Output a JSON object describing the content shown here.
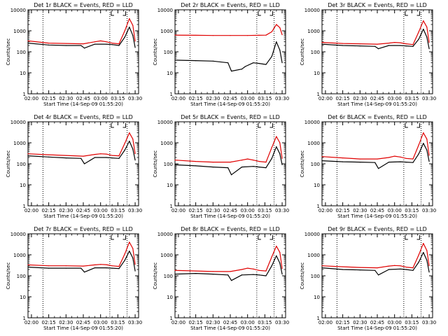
{
  "chart_data": [
    {
      "type": "line",
      "title": "Det 1r BLACK = Events, RED = LLD",
      "ylabel": "Counts/sec",
      "xlabel": "Start Time (14-Sep-09 01:55:20)",
      "yscale": "log",
      "ylim": [
        1,
        10000
      ],
      "x_ticks": [
        "02:00",
        "02:15",
        "02:30",
        "02:45",
        "03:00",
        "03:15",
        "03:30"
      ],
      "dotted_lines_at": [
        "02:10",
        "03:08",
        "03:23"
      ],
      "series": [
        {
          "color": "#000000",
          "x": [
            "01:57",
            "02:15",
            "02:30",
            "02:43",
            "02:46",
            "02:55",
            "03:05",
            "03:10",
            "03:16",
            "03:21",
            "03:25",
            "03:28",
            "03:30"
          ],
          "values": [
            260,
            210,
            200,
            200,
            150,
            230,
            230,
            220,
            200,
            500,
            1500,
            600,
            160
          ]
        },
        {
          "color": "#e00000",
          "x": [
            "01:57",
            "02:15",
            "02:30",
            "02:45",
            "02:55",
            "03:00",
            "03:05",
            "03:10",
            "03:16",
            "03:21",
            "03:25",
            "03:28",
            "03:30"
          ],
          "values": [
            330,
            260,
            250,
            240,
            300,
            330,
            300,
            260,
            240,
            1000,
            3800,
            1800,
            320
          ]
        }
      ]
    },
    {
      "type": "line",
      "title": "Det 2r BLACK = Events, RED = LLD",
      "ylabel": "Counts/sec",
      "xlabel": "Start Time (14-Sep-09 01:55:20)",
      "yscale": "log",
      "ylim": [
        1,
        10000
      ],
      "x_ticks": [
        "02:00",
        "02:15",
        "02:30",
        "02:45",
        "03:00",
        "03:15",
        "03:30"
      ],
      "dotted_lines_at": [
        "02:10",
        "03:08",
        "03:23"
      ],
      "series": [
        {
          "color": "#000000",
          "x": [
            "01:57",
            "02:15",
            "02:30",
            "02:43",
            "02:46",
            "02:55",
            "02:58",
            "03:05",
            "03:10",
            "03:16",
            "03:21",
            "03:25",
            "03:28",
            "03:30"
          ],
          "values": [
            40,
            38,
            36,
            30,
            12,
            15,
            20,
            30,
            28,
            25,
            60,
            300,
            120,
            30
          ]
        },
        {
          "color": "#e00000",
          "x": [
            "01:57",
            "02:15",
            "02:30",
            "02:45",
            "03:00",
            "03:10",
            "03:16",
            "03:21",
            "03:25",
            "03:28",
            "03:30"
          ],
          "values": [
            620,
            610,
            600,
            600,
            600,
            610,
            620,
            900,
            2000,
            1400,
            650
          ]
        }
      ]
    },
    {
      "type": "line",
      "title": "Det 3r BLACK = Events, RED = LLD",
      "ylabel": "Counts/sec",
      "xlabel": "Start Time (14-Sep-09 01:55:20)",
      "yscale": "log",
      "ylim": [
        1,
        10000
      ],
      "x_ticks": [
        "02:00",
        "02:15",
        "02:30",
        "02:45",
        "03:00",
        "03:15",
        "03:30"
      ],
      "dotted_lines_at": [
        "02:10",
        "03:08",
        "03:23"
      ],
      "series": [
        {
          "color": "#000000",
          "x": [
            "01:57",
            "02:15",
            "02:30",
            "02:43",
            "02:46",
            "02:55",
            "03:05",
            "03:10",
            "03:16",
            "03:21",
            "03:25",
            "03:28",
            "03:30"
          ],
          "values": [
            230,
            200,
            190,
            180,
            140,
            200,
            200,
            190,
            180,
            400,
            1200,
            500,
            140
          ]
        },
        {
          "color": "#e00000",
          "x": [
            "01:57",
            "02:15",
            "02:30",
            "02:45",
            "02:55",
            "03:00",
            "03:05",
            "03:10",
            "03:16",
            "03:21",
            "03:25",
            "03:28",
            "03:30"
          ],
          "values": [
            280,
            250,
            240,
            230,
            260,
            280,
            270,
            240,
            220,
            900,
            3000,
            1500,
            280
          ]
        }
      ]
    },
    {
      "type": "line",
      "title": "Det 4r BLACK = Events, RED = LLD",
      "ylabel": "Counts/sec",
      "xlabel": "Start Time (14-Sep-09 01:55:20)",
      "yscale": "log",
      "ylim": [
        1,
        10000
      ],
      "x_ticks": [
        "02:00",
        "02:15",
        "02:30",
        "02:45",
        "03:00",
        "03:15",
        "03:30"
      ],
      "dotted_lines_at": [
        "02:10",
        "03:08",
        "03:23"
      ],
      "series": [
        {
          "color": "#000000",
          "x": [
            "01:57",
            "02:15",
            "02:30",
            "02:43",
            "02:46",
            "02:55",
            "03:05",
            "03:10",
            "03:16",
            "03:21",
            "03:25",
            "03:28",
            "03:30"
          ],
          "values": [
            240,
            210,
            190,
            180,
            100,
            200,
            200,
            190,
            180,
            450,
            1200,
            500,
            150
          ]
        },
        {
          "color": "#e00000",
          "x": [
            "01:57",
            "02:15",
            "02:30",
            "02:45",
            "02:55",
            "03:00",
            "03:05",
            "03:10",
            "03:16",
            "03:21",
            "03:25",
            "03:28",
            "03:30"
          ],
          "values": [
            300,
            270,
            250,
            230,
            280,
            300,
            290,
            250,
            240,
            950,
            3000,
            1500,
            300
          ]
        }
      ]
    },
    {
      "type": "line",
      "title": "Det 5r BLACK = Events, RED = LLD",
      "ylabel": "Counts/sec",
      "xlabel": "Start Time (14-Sep-09 01:55:20)",
      "yscale": "log",
      "ylim": [
        1,
        10000
      ],
      "x_ticks": [
        "02:00",
        "02:15",
        "02:30",
        "02:45",
        "03:00",
        "03:15",
        "03:30"
      ],
      "dotted_lines_at": [
        "02:10",
        "03:08",
        "03:23"
      ],
      "series": [
        {
          "color": "#000000",
          "x": [
            "01:57",
            "02:15",
            "02:30",
            "02:43",
            "02:46",
            "02:55",
            "03:05",
            "03:10",
            "03:16",
            "03:21",
            "03:25",
            "03:28",
            "03:30"
          ],
          "values": [
            90,
            80,
            70,
            65,
            30,
            70,
            75,
            70,
            65,
            180,
            650,
            300,
            90
          ]
        },
        {
          "color": "#e00000",
          "x": [
            "01:57",
            "02:15",
            "02:30",
            "02:45",
            "02:55",
            "03:00",
            "03:05",
            "03:10",
            "03:16",
            "03:21",
            "03:25",
            "03:28",
            "03:30"
          ],
          "values": [
            150,
            130,
            120,
            120,
            150,
            170,
            150,
            130,
            120,
            600,
            2000,
            1000,
            180
          ]
        }
      ]
    },
    {
      "type": "line",
      "title": "Det 6r BLACK = Events, RED = LLD",
      "ylabel": "Counts/sec",
      "xlabel": "Start Time (14-Sep-09 01:55:20)",
      "yscale": "log",
      "ylim": [
        1,
        10000
      ],
      "x_ticks": [
        "02:00",
        "02:15",
        "02:30",
        "02:45",
        "03:00",
        "03:15",
        "03:30"
      ],
      "dotted_lines_at": [
        "02:10",
        "03:08",
        "03:23"
      ],
      "series": [
        {
          "color": "#000000",
          "x": [
            "01:57",
            "02:15",
            "02:30",
            "02:43",
            "02:46",
            "02:55",
            "03:05",
            "03:10",
            "03:16",
            "03:21",
            "03:25",
            "03:28",
            "03:30"
          ],
          "values": [
            140,
            125,
            120,
            115,
            60,
            120,
            125,
            120,
            115,
            300,
            950,
            450,
            130
          ]
        },
        {
          "color": "#e00000",
          "x": [
            "01:57",
            "02:15",
            "02:30",
            "02:45",
            "02:55",
            "03:00",
            "03:05",
            "03:10",
            "03:16",
            "03:21",
            "03:25",
            "03:28",
            "03:30"
          ],
          "values": [
            220,
            190,
            170,
            170,
            200,
            230,
            210,
            180,
            170,
            800,
            3000,
            1500,
            250
          ]
        }
      ]
    },
    {
      "type": "line",
      "title": "Det 7r BLACK = Events, RED = LLD",
      "ylabel": "Counts/sec",
      "xlabel": "Start Time (14-Sep-09 01:55:20)",
      "yscale": "log",
      "ylim": [
        1,
        10000
      ],
      "x_ticks": [
        "02:00",
        "02:15",
        "02:30",
        "02:45",
        "03:00",
        "03:15",
        "03:30"
      ],
      "dotted_lines_at": [
        "02:10",
        "03:08",
        "03:23"
      ],
      "series": [
        {
          "color": "#000000",
          "x": [
            "01:57",
            "02:15",
            "02:30",
            "02:43",
            "02:46",
            "02:55",
            "03:05",
            "03:10",
            "03:16",
            "03:21",
            "03:25",
            "03:28",
            "03:30"
          ],
          "values": [
            260,
            230,
            230,
            230,
            150,
            240,
            240,
            230,
            220,
            550,
            1500,
            700,
            170
          ]
        },
        {
          "color": "#e00000",
          "x": [
            "01:57",
            "02:15",
            "02:30",
            "02:45",
            "02:55",
            "03:00",
            "03:05",
            "03:10",
            "03:16",
            "03:21",
            "03:25",
            "03:28",
            "03:30"
          ],
          "values": [
            330,
            300,
            300,
            290,
            330,
            350,
            340,
            300,
            280,
            1100,
            4000,
            2000,
            350
          ]
        }
      ]
    },
    {
      "type": "line",
      "title": "Det 8r BLACK = Events, RED = LLD",
      "ylabel": "Counts/sec",
      "xlabel": "Start Time (14-Sep-09 01:55:20)",
      "yscale": "log",
      "ylim": [
        1,
        10000
      ],
      "x_ticks": [
        "02:00",
        "02:15",
        "02:30",
        "02:45",
        "03:00",
        "03:15",
        "03:30"
      ],
      "dotted_lines_at": [
        "02:10",
        "03:08",
        "03:23"
      ],
      "series": [
        {
          "color": "#000000",
          "x": [
            "01:57",
            "02:15",
            "02:30",
            "02:43",
            "02:46",
            "02:55",
            "03:05",
            "03:10",
            "03:16",
            "03:21",
            "03:25",
            "03:28",
            "03:30"
          ],
          "values": [
            120,
            130,
            120,
            110,
            60,
            110,
            115,
            110,
            100,
            300,
            900,
            400,
            120
          ]
        },
        {
          "color": "#e00000",
          "x": [
            "01:57",
            "02:15",
            "02:30",
            "02:45",
            "02:55",
            "03:00",
            "03:05",
            "03:10",
            "03:16",
            "03:21",
            "03:25",
            "03:28",
            "03:30"
          ],
          "values": [
            180,
            170,
            160,
            160,
            200,
            230,
            210,
            180,
            170,
            800,
            2600,
            1300,
            220
          ]
        }
      ]
    },
    {
      "type": "line",
      "title": "Det 9r BLACK = Events, RED = LLD",
      "ylabel": "Counts/sec",
      "xlabel": "Start Time (14-Sep-09 01:55:20)",
      "yscale": "log",
      "ylim": [
        1,
        10000
      ],
      "x_ticks": [
        "02:00",
        "02:15",
        "02:30",
        "02:45",
        "03:00",
        "03:15",
        "03:30"
      ],
      "dotted_lines_at": [
        "02:10",
        "03:08",
        "03:23"
      ],
      "series": [
        {
          "color": "#000000",
          "x": [
            "01:57",
            "02:15",
            "02:30",
            "02:43",
            "02:46",
            "02:55",
            "03:05",
            "03:10",
            "03:16",
            "03:21",
            "03:25",
            "03:28",
            "03:30"
          ],
          "values": [
            240,
            200,
            190,
            180,
            110,
            200,
            210,
            200,
            180,
            450,
            1300,
            550,
            150
          ]
        },
        {
          "color": "#e00000",
          "x": [
            "01:57",
            "02:15",
            "02:30",
            "02:45",
            "02:55",
            "03:00",
            "03:05",
            "03:10",
            "03:16",
            "03:21",
            "03:25",
            "03:28",
            "03:30"
          ],
          "values": [
            300,
            270,
            250,
            240,
            290,
            310,
            300,
            260,
            240,
            1000,
            3500,
            1600,
            300
          ]
        }
      ]
    }
  ],
  "colors": {
    "events": "#000000",
    "lld": "#e00000",
    "background": "#ffffff"
  }
}
